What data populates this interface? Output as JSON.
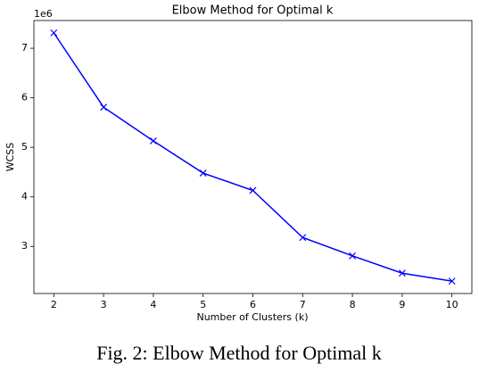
{
  "chart_data": {
    "type": "line",
    "title": "Elbow Method for Optimal k",
    "xlabel": "Number of Clusters (k)",
    "ylabel": "WCSS",
    "y_offset_label": "1e6",
    "x": [
      2,
      3,
      4,
      5,
      6,
      7,
      8,
      9,
      10
    ],
    "series": [
      {
        "name": "WCSS",
        "color": "#0000ff",
        "marker": "x",
        "values": [
          7.31,
          5.81,
          5.13,
          4.48,
          4.13,
          3.18,
          2.81,
          2.46,
          2.3
        ]
      }
    ],
    "xlim": [
      1.6,
      10.4
    ],
    "xticks": [
      2,
      3,
      4,
      5,
      6,
      7,
      8,
      9,
      10
    ],
    "ylim": [
      2.05,
      7.56
    ],
    "yticks": [
      3,
      4,
      5,
      6,
      7
    ]
  },
  "caption": "Fig. 2: Elbow Method for Optimal k"
}
